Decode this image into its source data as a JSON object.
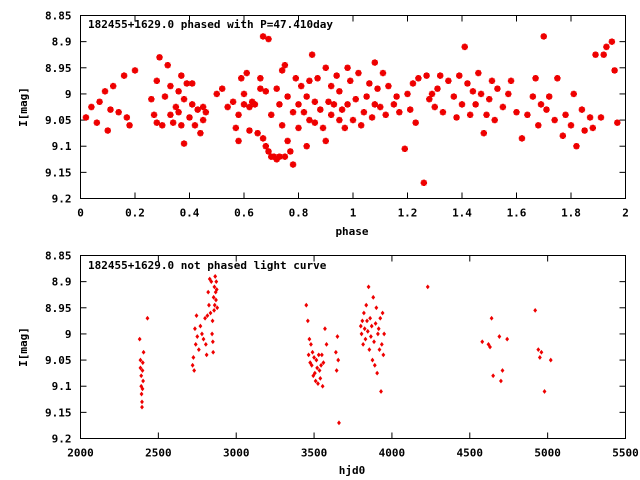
{
  "chart_data": [
    {
      "type": "scatter",
      "title": "182455+1629.0 phased with P=47.410day",
      "xlabel": "phase",
      "ylabel": "I[mag]",
      "xlim": [
        0,
        2
      ],
      "ylim": [
        9.2,
        8.85
      ],
      "y_inverted": true,
      "xticks": [
        "0",
        "0.2",
        "0.4",
        "0.6",
        "0.8",
        "1",
        "1.2",
        "1.4",
        "1.6",
        "1.8",
        "2"
      ],
      "yticks": [
        "8.85",
        "8.9",
        "8.95",
        "9",
        "9.05",
        "9.1",
        "9.15",
        "9.2"
      ],
      "grid": false,
      "color": "#ee0000",
      "marker": "star",
      "points": [
        [
          0.02,
          9.045
        ],
        [
          0.04,
          9.025
        ],
        [
          0.06,
          9.055
        ],
        [
          0.07,
          9.015
        ],
        [
          0.09,
          8.995
        ],
        [
          0.1,
          9.07
        ],
        [
          0.11,
          9.03
        ],
        [
          0.12,
          8.985
        ],
        [
          0.14,
          9.035
        ],
        [
          0.16,
          8.965
        ],
        [
          0.17,
          9.045
        ],
        [
          0.18,
          9.06
        ],
        [
          0.2,
          8.955
        ],
        [
          0.26,
          9.01
        ],
        [
          0.27,
          9.04
        ],
        [
          0.28,
          9.055
        ],
        [
          0.28,
          8.975
        ],
        [
          0.29,
          8.93
        ],
        [
          0.3,
          9.06
        ],
        [
          0.31,
          9.005
        ],
        [
          0.32,
          8.945
        ],
        [
          0.33,
          9.04
        ],
        [
          0.33,
          8.985
        ],
        [
          0.34,
          9.055
        ],
        [
          0.35,
          9.025
        ],
        [
          0.36,
          8.995
        ],
        [
          0.36,
          9.035
        ],
        [
          0.37,
          8.965
        ],
        [
          0.37,
          9.06
        ],
        [
          0.38,
          9.01
        ],
        [
          0.38,
          9.095
        ],
        [
          0.39,
          8.98
        ],
        [
          0.4,
          9.045
        ],
        [
          0.41,
          9.02
        ],
        [
          0.41,
          8.98
        ],
        [
          0.42,
          9.06
        ],
        [
          0.43,
          9.03
        ],
        [
          0.44,
          9.075
        ],
        [
          0.45,
          9.05
        ],
        [
          0.45,
          9.025
        ],
        [
          0.46,
          9.035
        ],
        [
          0.5,
          9.0
        ],
        [
          0.52,
          8.99
        ],
        [
          0.54,
          9.025
        ],
        [
          0.56,
          9.015
        ],
        [
          0.57,
          9.065
        ],
        [
          0.58,
          9.09
        ],
        [
          0.58,
          9.04
        ],
        [
          0.59,
          8.97
        ],
        [
          0.6,
          9.0
        ],
        [
          0.6,
          9.02
        ],
        [
          0.61,
          8.96
        ],
        [
          0.62,
          9.07
        ],
        [
          0.62,
          9.025
        ],
        [
          0.63,
          9.015
        ],
        [
          0.64,
          9.02
        ],
        [
          0.65,
          9.075
        ],
        [
          0.66,
          8.99
        ],
        [
          0.66,
          8.97
        ],
        [
          0.67,
          8.89
        ],
        [
          0.67,
          9.085
        ],
        [
          0.68,
          9.1
        ],
        [
          0.68,
          8.995
        ],
        [
          0.69,
          9.11
        ],
        [
          0.69,
          8.895
        ],
        [
          0.7,
          9.12
        ],
        [
          0.7,
          9.04
        ],
        [
          0.71,
          9.12
        ],
        [
          0.72,
          9.125
        ],
        [
          0.72,
          8.99
        ],
        [
          0.73,
          9.12
        ],
        [
          0.73,
          9.02
        ],
        [
          0.74,
          8.955
        ],
        [
          0.74,
          9.06
        ],
        [
          0.75,
          8.945
        ],
        [
          0.75,
          9.12
        ],
        [
          0.76,
          9.005
        ],
        [
          0.76,
          9.09
        ],
        [
          0.77,
          9.11
        ],
        [
          0.78,
          9.135
        ],
        [
          0.78,
          9.035
        ],
        [
          0.79,
          8.97
        ],
        [
          0.8,
          9.02
        ],
        [
          0.8,
          9.065
        ],
        [
          0.81,
          8.985
        ],
        [
          0.82,
          9.035
        ],
        [
          0.83,
          9.005
        ],
        [
          0.83,
          9.1
        ],
        [
          0.84,
          9.05
        ],
        [
          0.84,
          8.975
        ],
        [
          0.85,
          8.925
        ],
        [
          0.86,
          9.015
        ],
        [
          0.86,
          9.055
        ],
        [
          0.87,
          8.97
        ],
        [
          0.88,
          9.03
        ],
        [
          0.89,
          9.065
        ],
        [
          0.9,
          8.95
        ],
        [
          0.9,
          9.09
        ],
        [
          0.91,
          9.015
        ],
        [
          0.92,
          9.04
        ],
        [
          0.92,
          8.985
        ],
        [
          0.93,
          9.02
        ],
        [
          0.94,
          8.965
        ],
        [
          0.95,
          9.05
        ],
        [
          0.95,
          8.995
        ],
        [
          0.96,
          9.03
        ],
        [
          0.97,
          9.065
        ],
        [
          0.98,
          8.95
        ],
        [
          0.98,
          9.02
        ],
        [
          0.99,
          8.975
        ],
        [
          1.0,
          9.05
        ],
        [
          1.01,
          9.01
        ],
        [
          1.02,
          8.96
        ],
        [
          1.03,
          9.06
        ],
        [
          1.04,
          9.035
        ],
        [
          1.05,
          9.005
        ],
        [
          1.06,
          8.98
        ],
        [
          1.07,
          9.045
        ],
        [
          1.08,
          8.94
        ],
        [
          1.08,
          9.02
        ],
        [
          1.09,
          8.99
        ],
        [
          1.1,
          9.025
        ],
        [
          1.11,
          8.96
        ],
        [
          1.12,
          9.04
        ],
        [
          1.13,
          8.985
        ],
        [
          1.15,
          9.02
        ],
        [
          1.16,
          9.005
        ],
        [
          1.17,
          9.035
        ],
        [
          1.19,
          9.105
        ],
        [
          1.2,
          9.0
        ],
        [
          1.21,
          9.03
        ],
        [
          1.22,
          8.98
        ],
        [
          1.23,
          9.055
        ],
        [
          1.24,
          8.97
        ],
        [
          1.26,
          9.17
        ],
        [
          1.27,
          8.965
        ],
        [
          1.28,
          9.01
        ],
        [
          1.29,
          9.0
        ],
        [
          1.3,
          9.025
        ],
        [
          1.31,
          8.99
        ],
        [
          1.32,
          8.965
        ],
        [
          1.33,
          9.035
        ],
        [
          1.35,
          8.975
        ],
        [
          1.37,
          9.005
        ],
        [
          1.38,
          9.045
        ],
        [
          1.39,
          8.965
        ],
        [
          1.4,
          9.02
        ],
        [
          1.41,
          8.91
        ],
        [
          1.42,
          8.98
        ],
        [
          1.43,
          9.04
        ],
        [
          1.44,
          8.995
        ],
        [
          1.45,
          9.02
        ],
        [
          1.46,
          8.96
        ],
        [
          1.47,
          9.0
        ],
        [
          1.48,
          9.075
        ],
        [
          1.49,
          9.04
        ],
        [
          1.5,
          9.01
        ],
        [
          1.51,
          8.975
        ],
        [
          1.52,
          9.05
        ],
        [
          1.53,
          8.99
        ],
        [
          1.55,
          9.025
        ],
        [
          1.57,
          9.0
        ],
        [
          1.58,
          8.975
        ],
        [
          1.6,
          9.035
        ],
        [
          1.62,
          9.085
        ],
        [
          1.64,
          9.04
        ],
        [
          1.66,
          9.005
        ],
        [
          1.67,
          8.97
        ],
        [
          1.68,
          9.06
        ],
        [
          1.69,
          9.02
        ],
        [
          1.7,
          8.89
        ],
        [
          1.71,
          9.03
        ],
        [
          1.72,
          9.005
        ],
        [
          1.74,
          9.05
        ],
        [
          1.75,
          8.97
        ],
        [
          1.77,
          9.08
        ],
        [
          1.78,
          9.04
        ],
        [
          1.8,
          9.06
        ],
        [
          1.81,
          9.0
        ],
        [
          1.82,
          9.1
        ],
        [
          1.84,
          9.03
        ],
        [
          1.85,
          9.07
        ],
        [
          1.87,
          9.045
        ],
        [
          1.88,
          9.065
        ],
        [
          1.89,
          8.925
        ],
        [
          1.91,
          9.045
        ],
        [
          1.92,
          8.925
        ],
        [
          1.93,
          8.91
        ],
        [
          1.95,
          8.9
        ],
        [
          1.96,
          8.955
        ],
        [
          1.97,
          9.055
        ]
      ]
    },
    {
      "type": "scatter",
      "title": "182455+1629.0 not phased light curve",
      "xlabel": "hjd0",
      "ylabel": "I[mag]",
      "xlim": [
        2000,
        5500
      ],
      "ylim": [
        9.2,
        8.85
      ],
      "y_inverted": true,
      "xticks": [
        "2000",
        "2500",
        "3000",
        "3500",
        "4000",
        "4500",
        "5000",
        "5500"
      ],
      "yticks": [
        "8.85",
        "8.9",
        "8.95",
        "9",
        "9.05",
        "9.1",
        "9.15",
        "9.2"
      ],
      "grid": false,
      "color": "#ee0000",
      "marker": "diamond",
      "points": [
        [
          2380,
          9.01
        ],
        [
          2385,
          9.05
        ],
        [
          2385,
          9.065
        ],
        [
          2390,
          9.08
        ],
        [
          2390,
          9.1
        ],
        [
          2392,
          9.115
        ],
        [
          2395,
          9.13
        ],
        [
          2395,
          9.14
        ],
        [
          2398,
          9.105
        ],
        [
          2398,
          9.07
        ],
        [
          2400,
          9.055
        ],
        [
          2402,
          9.09
        ],
        [
          2405,
          9.035
        ],
        [
          2430,
          8.97
        ],
        [
          2720,
          9.06
        ],
        [
          2725,
          9.045
        ],
        [
          2730,
          9.07
        ],
        [
          2735,
          8.99
        ],
        [
          2740,
          9.02
        ],
        [
          2745,
          8.965
        ],
        [
          2750,
          9.005
        ],
        [
          2760,
          9.03
        ],
        [
          2770,
          8.985
        ],
        [
          2780,
          9.0
        ],
        [
          2790,
          9.01
        ],
        [
          2800,
          8.97
        ],
        [
          2805,
          9.02
        ],
        [
          2810,
          9.04
        ],
        [
          2815,
          8.965
        ],
        [
          2820,
          8.92
        ],
        [
          2825,
          8.945
        ],
        [
          2830,
          8.895
        ],
        [
          2835,
          8.96
        ],
        [
          2840,
          8.9
        ],
        [
          2845,
          9.0
        ],
        [
          2848,
          8.975
        ],
        [
          2850,
          9.015
        ],
        [
          2852,
          9.035
        ],
        [
          2855,
          8.93
        ],
        [
          2858,
          8.955
        ],
        [
          2860,
          8.91
        ],
        [
          2862,
          8.945
        ],
        [
          2865,
          8.89
        ],
        [
          2868,
          8.92
        ],
        [
          2870,
          8.935
        ],
        [
          2872,
          8.9
        ],
        [
          2875,
          8.915
        ],
        [
          2878,
          8.95
        ],
        [
          3450,
          8.945
        ],
        [
          3460,
          8.975
        ],
        [
          3465,
          9.04
        ],
        [
          3470,
          9.01
        ],
        [
          3475,
          9.055
        ],
        [
          3480,
          9.02
        ],
        [
          3485,
          9.06
        ],
        [
          3490,
          9.035
        ],
        [
          3495,
          9.08
        ],
        [
          3500,
          9.045
        ],
        [
          3505,
          9.075
        ],
        [
          3510,
          9.09
        ],
        [
          3515,
          9.05
        ],
        [
          3520,
          9.065
        ],
        [
          3525,
          9.095
        ],
        [
          3530,
          9.04
        ],
        [
          3535,
          9.07
        ],
        [
          3540,
          9.085
        ],
        [
          3545,
          9.06
        ],
        [
          3550,
          9.04
        ],
        [
          3555,
          9.1
        ],
        [
          3560,
          9.055
        ],
        [
          3570,
          8.99
        ],
        [
          3580,
          9.02
        ],
        [
          3640,
          9.035
        ],
        [
          3645,
          9.07
        ],
        [
          3650,
          9.005
        ],
        [
          3655,
          9.05
        ],
        [
          3660,
          9.17
        ],
        [
          3800,
          8.985
        ],
        [
          3805,
          9.0
        ],
        [
          3810,
          8.975
        ],
        [
          3815,
          9.02
        ],
        [
          3820,
          8.96
        ],
        [
          3825,
          8.99
        ],
        [
          3830,
          9.01
        ],
        [
          3835,
          8.945
        ],
        [
          3840,
          8.975
        ],
        [
          3845,
          8.995
        ],
        [
          3850,
          8.91
        ],
        [
          3855,
          9.03
        ],
        [
          3860,
          8.97
        ],
        [
          3865,
          9.005
        ],
        [
          3870,
          8.985
        ],
        [
          3875,
          9.05
        ],
        [
          3880,
          8.93
        ],
        [
          3885,
          9.015
        ],
        [
          3890,
          9.06
        ],
        [
          3895,
          8.98
        ],
        [
          3900,
          8.95
        ],
        [
          3905,
          9.075
        ],
        [
          3910,
          9.0
        ],
        [
          3915,
          8.99
        ],
        [
          3920,
          9.03
        ],
        [
          3925,
          8.97
        ],
        [
          3930,
          9.11
        ],
        [
          3935,
          9.02
        ],
        [
          3940,
          8.96
        ],
        [
          3945,
          9.04
        ],
        [
          3950,
          9.0
        ],
        [
          4230,
          8.91
        ],
        [
          4580,
          9.015
        ],
        [
          4620,
          9.02
        ],
        [
          4630,
          9.025
        ],
        [
          4640,
          8.97
        ],
        [
          4650,
          9.08
        ],
        [
          4690,
          9.005
        ],
        [
          4700,
          9.09
        ],
        [
          4710,
          9.07
        ],
        [
          4740,
          9.01
        ],
        [
          4920,
          8.955
        ],
        [
          4940,
          9.03
        ],
        [
          4950,
          9.045
        ],
        [
          4960,
          9.035
        ],
        [
          4980,
          9.11
        ],
        [
          5020,
          9.05
        ]
      ]
    }
  ]
}
